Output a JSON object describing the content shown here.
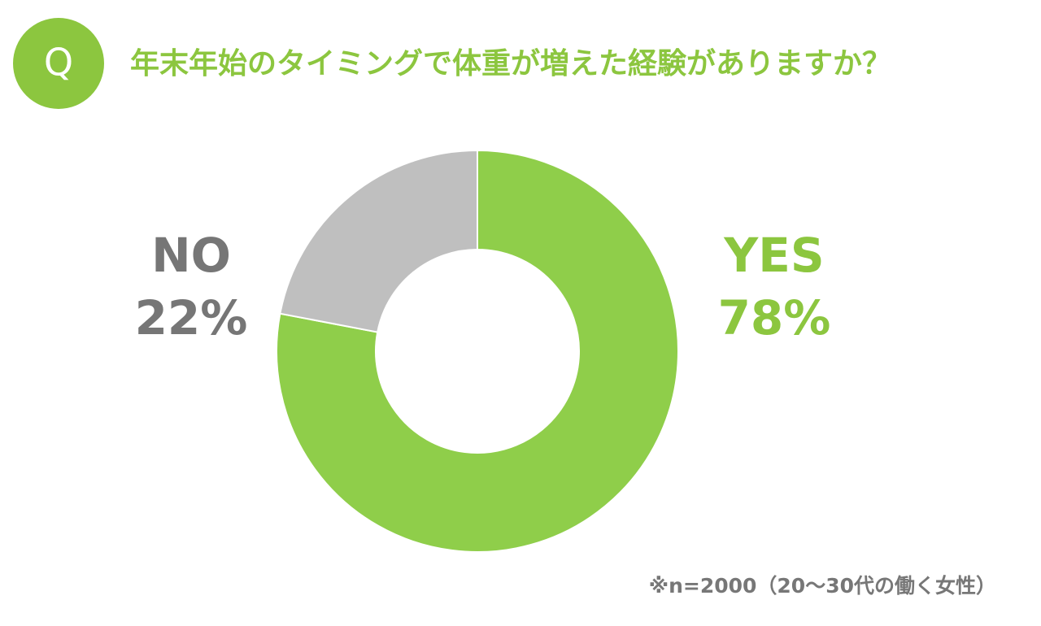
{
  "chart_data": {
    "type": "pie",
    "donut": true,
    "badge": "Q",
    "title": "年末年始のタイミングで体重が増えた経験がありますか？",
    "categories": [
      "YES",
      "NO"
    ],
    "values": [
      78,
      22
    ],
    "value_labels": [
      "78%",
      "22%"
    ],
    "colors": [
      "#8fce4a",
      "#bfbfbf"
    ],
    "label_colors": [
      "#8cc63f",
      "#767676"
    ],
    "title_color": "#8cc63f",
    "note": "※n=2000（20～30代の働く女性）"
  }
}
